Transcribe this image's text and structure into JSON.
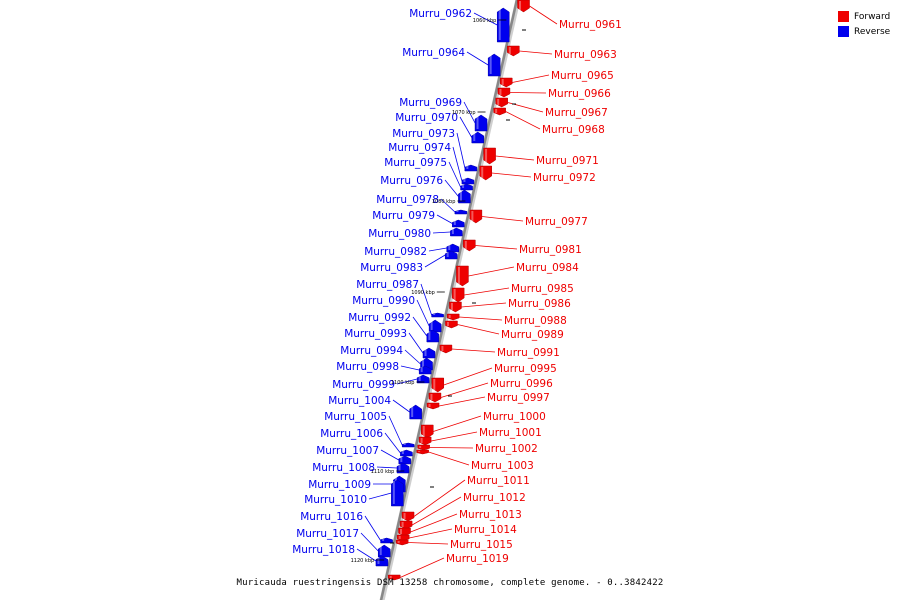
{
  "caption": "Muricauda ruestringensis DSM 13258 chromosome, complete genome. - 0..3842422",
  "legend": [
    {
      "label": "Forward",
      "color": "#ee0000"
    },
    {
      "label": "Reverse",
      "color": "#0000ee"
    }
  ],
  "colors": {
    "forward": "#ee0000",
    "reverse": "#0000ee",
    "axis": "#999999"
  },
  "ticks": [
    "1060 kbp",
    "1070 kbp",
    "1080 kbp",
    "1090 kbp",
    "1100 kbp",
    "1110 kbp",
    "1120 kbp"
  ],
  "forward_genes": [
    "Murru_0961",
    "Murru_0963",
    "Murru_0965",
    "Murru_0966",
    "Murru_0967",
    "Murru_0968",
    "Murru_0971",
    "Murru_0972",
    "Murru_0977",
    "Murru_0981",
    "Murru_0984",
    "Murru_0985",
    "Murru_0986",
    "Murru_0988",
    "Murru_0989",
    "Murru_0991",
    "Murru_0995",
    "Murru_0996",
    "Murru_0997",
    "Murru_1000",
    "Murru_1001",
    "Murru_1002",
    "Murru_1003",
    "Murru_1011",
    "Murru_1012",
    "Murru_1013",
    "Murru_1014",
    "Murru_1015",
    "Murru_1019"
  ],
  "reverse_genes": [
    "Murru_0962",
    "Murru_0964",
    "Murru_0969",
    "Murru_0970",
    "Murru_0973",
    "Murru_0974",
    "Murru_0975",
    "Murru_0976",
    "Murru_0978",
    "Murru_0979",
    "Murru_0980",
    "Murru_0982",
    "Murru_0983",
    "Murru_0987",
    "Murru_0990",
    "Murru_0992",
    "Murru_0993",
    "Murru_0994",
    "Murru_0998",
    "Murru_0999",
    "Murru_1004",
    "Murru_1005",
    "Murru_1006",
    "Murru_1007",
    "Murru_1008",
    "Murru_1009",
    "Murru_1010",
    "Murru_1016",
    "Murru_1017",
    "Murru_1018"
  ]
}
